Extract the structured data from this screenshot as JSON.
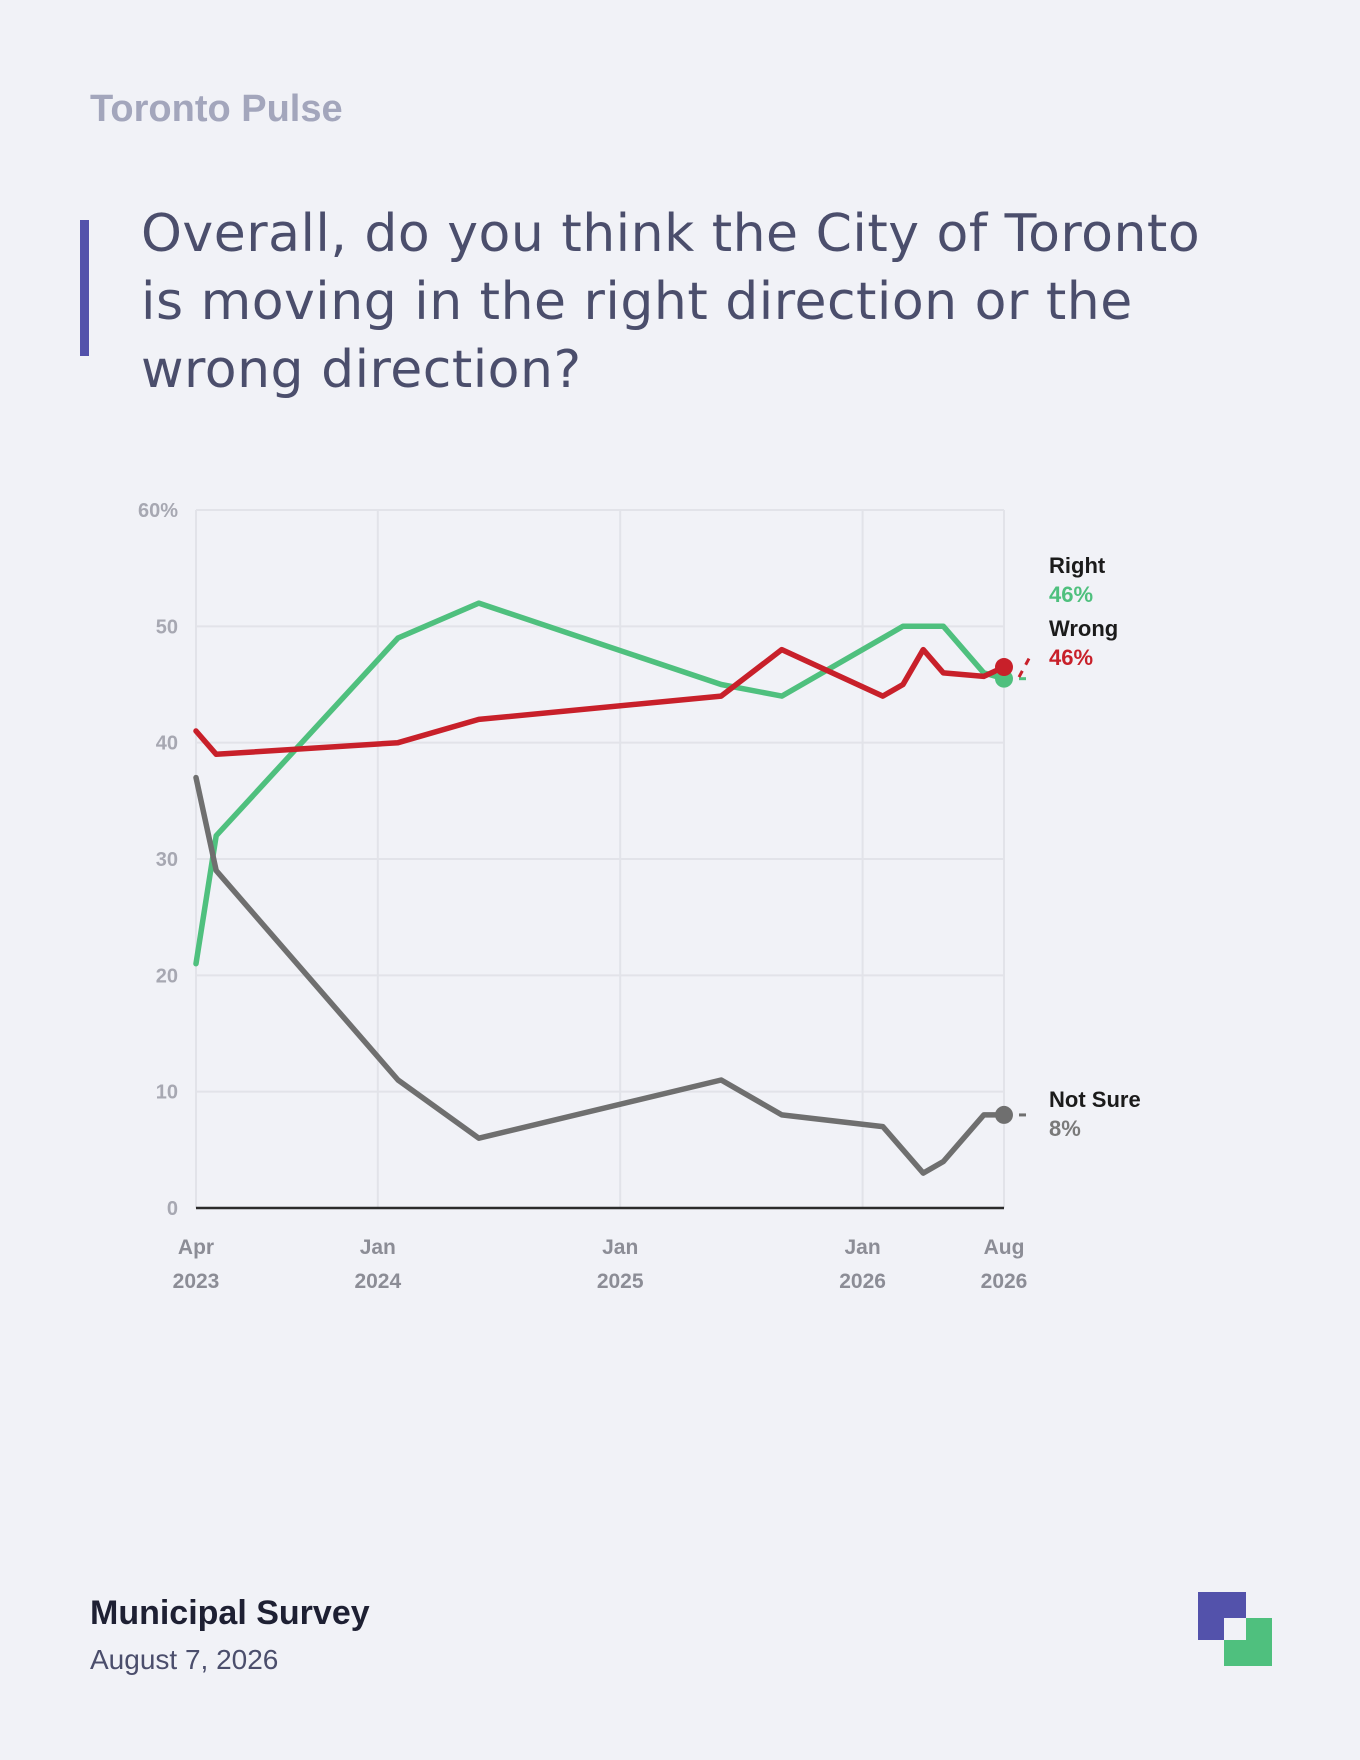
{
  "brand": "Toronto Pulse",
  "question": "Overall, do you think the City of Toronto is moving in the right direction or the wrong direction?",
  "footer": {
    "title": "Municipal Survey",
    "date": "August 7, 2026"
  },
  "colors": {
    "accent": "#5352ab",
    "right": "#4fc07e",
    "wrong": "#c8202a",
    "not_sure": "#6f6f6f",
    "logo_primary": "#5352ab",
    "logo_secondary": "#4fc07e"
  },
  "chart_data": {
    "type": "line",
    "ylim": [
      0,
      60
    ],
    "y_ticks": [
      {
        "value": 0,
        "label": "0"
      },
      {
        "value": 10,
        "label": "10"
      },
      {
        "value": 20,
        "label": "20"
      },
      {
        "value": 30,
        "label": "30"
      },
      {
        "value": 40,
        "label": "40"
      },
      {
        "value": 50,
        "label": "50"
      },
      {
        "value": 60,
        "label": "60%"
      }
    ],
    "x_ticks": [
      {
        "date": "2023-04",
        "month": "Apr",
        "year": "2023"
      },
      {
        "date": "2024-01",
        "month": "Jan",
        "year": "2024"
      },
      {
        "date": "2025-01",
        "month": "Jan",
        "year": "2025"
      },
      {
        "date": "2026-01",
        "month": "Jan",
        "year": "2026"
      },
      {
        "date": "2026-08",
        "month": "Aug",
        "year": "2026"
      }
    ],
    "xlim": [
      "2023-04",
      "2026-08"
    ],
    "grid": true,
    "series": [
      {
        "name": "Right",
        "value_label": "46%",
        "color": "#4fc07e",
        "points": [
          [
            "2023-04",
            21
          ],
          [
            "2023-05",
            32
          ],
          [
            "2024-02",
            49
          ],
          [
            "2024-06",
            52
          ],
          [
            "2025-06",
            45
          ],
          [
            "2025-09",
            44
          ],
          [
            "2026-03",
            50
          ],
          [
            "2026-05",
            50
          ],
          [
            "2026-07",
            46
          ],
          [
            "2026-08",
            45.5
          ]
        ]
      },
      {
        "name": "Wrong",
        "value_label": "46%",
        "color": "#c8202a",
        "points": [
          [
            "2023-04",
            41
          ],
          [
            "2023-05",
            39
          ],
          [
            "2024-02",
            40
          ],
          [
            "2024-06",
            42
          ],
          [
            "2025-06",
            44
          ],
          [
            "2025-09",
            48
          ],
          [
            "2026-02",
            44
          ],
          [
            "2026-03",
            45
          ],
          [
            "2026-04",
            48
          ],
          [
            "2026-05",
            46
          ],
          [
            "2026-07",
            45.7
          ],
          [
            "2026-08",
            46.5
          ]
        ]
      },
      {
        "name": "Not Sure",
        "value_label": "8%",
        "color": "#6f6f6f",
        "points": [
          [
            "2023-04",
            37
          ],
          [
            "2023-05",
            29
          ],
          [
            "2024-02",
            11
          ],
          [
            "2024-06",
            6
          ],
          [
            "2025-06",
            11
          ],
          [
            "2025-09",
            8
          ],
          [
            "2026-02",
            7
          ],
          [
            "2026-03",
            5
          ],
          [
            "2026-04",
            3
          ],
          [
            "2026-05",
            4
          ],
          [
            "2026-07",
            8
          ],
          [
            "2026-08",
            8
          ]
        ]
      }
    ]
  }
}
